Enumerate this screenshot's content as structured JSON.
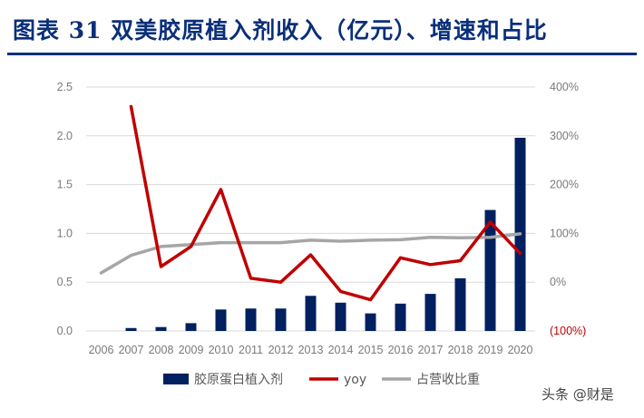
{
  "header": {
    "title": "图表 31    双美胶原植入剂收入（亿元）、增速和占比"
  },
  "watermark": "头条 @财是",
  "colors": {
    "bars": "#002060",
    "yoy": "#c00000",
    "share": "#a6a6a6",
    "title": "#0a2f7a"
  },
  "chart_data": {
    "type": "bar",
    "categories": [
      "2006",
      "2007",
      "2008",
      "2009",
      "2010",
      "2011",
      "2012",
      "2013",
      "2014",
      "2015",
      "2016",
      "2017",
      "2018",
      "2019",
      "2020"
    ],
    "series": [
      {
        "name": "胶原蛋白植入剂",
        "type": "bar",
        "axis": "left",
        "values": [
          null,
          0.03,
          0.04,
          0.08,
          0.22,
          0.23,
          0.23,
          0.36,
          0.29,
          0.18,
          0.28,
          0.38,
          0.54,
          1.24,
          1.98
        ]
      },
      {
        "name": "yoy",
        "type": "line",
        "axis": "right",
        "values": [
          null,
          360,
          32,
          73,
          190,
          8,
          0,
          56,
          -19,
          -36,
          50,
          36,
          44,
          123,
          59
        ]
      },
      {
        "name": "占营收比重",
        "type": "line",
        "axis": "right",
        "values": [
          19,
          55,
          73,
          77,
          81,
          81,
          81,
          86,
          84,
          86,
          87,
          92,
          91,
          92,
          99
        ]
      }
    ],
    "left_axis": {
      "ylim": [
        0,
        2.5
      ],
      "ticks": [
        "0.0",
        "0.5",
        "1.0",
        "1.5",
        "2.0",
        "2.5"
      ]
    },
    "right_axis": {
      "ylim": [
        -100,
        400
      ],
      "ticks": [
        "(100%)",
        "0%",
        "100%",
        "200%",
        "300%",
        "400%"
      ]
    },
    "grid": true,
    "legend_position": "bottom"
  }
}
